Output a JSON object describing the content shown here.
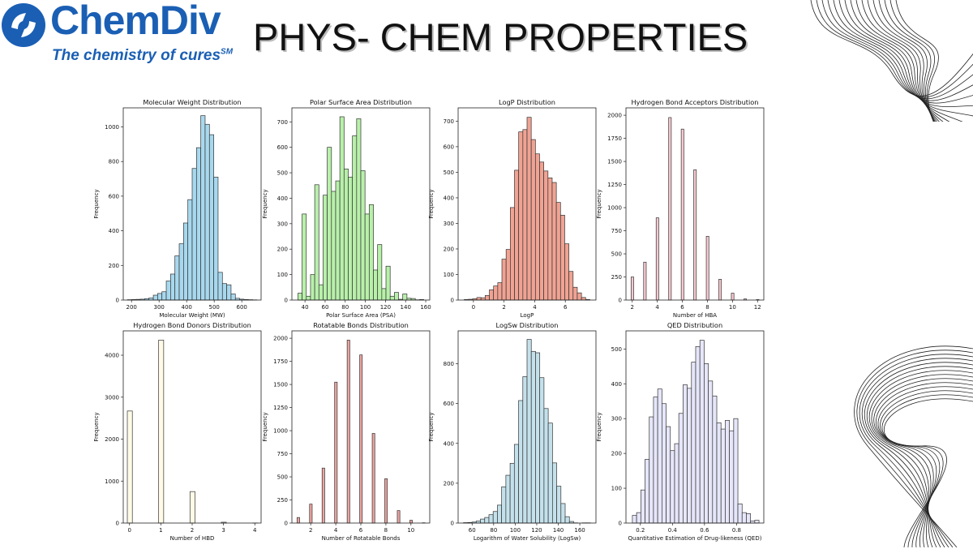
{
  "header": {
    "logo_name": "ChemDiv",
    "logo_tagline": "The chemistry of cures",
    "logo_tagline_mark": "SM",
    "title": "PHYS- CHEM PROPERTIES",
    "brand_color": "#1a5fb4"
  },
  "chart_data": [
    {
      "type": "bar",
      "id": "mw",
      "title": "Molecular Weight Distribution",
      "xlabel": "Molecular Weight (MW)",
      "ylabel": "Frequency",
      "color": "#a8d8ee",
      "bin_range": [
        185,
        655
      ],
      "xlim": [
        170,
        670
      ],
      "xticks": [
        200,
        300,
        400,
        500,
        600
      ],
      "ylim": [
        0,
        1110
      ],
      "yticks": [
        0,
        200,
        400,
        600,
        800,
        1000
      ],
      "values": [
        2,
        3,
        4,
        5,
        8,
        12,
        28,
        38,
        48,
        110,
        150,
        255,
        325,
        445,
        580,
        760,
        880,
        1065,
        1015,
        955,
        710,
        160,
        95,
        88,
        35,
        10,
        5,
        3,
        2,
        1
      ]
    },
    {
      "type": "bar",
      "id": "psa",
      "title": "Polar Surface Area Distribution",
      "xlabel": "Polar Surface Area (PSA)",
      "ylabel": "Frequency",
      "color": "#b8f0aa",
      "bin_range": [
        33,
        158
      ],
      "xlim": [
        27,
        164
      ],
      "xticks": [
        40,
        60,
        80,
        100,
        120,
        140,
        160
      ],
      "ylim": [
        0,
        755
      ],
      "yticks": [
        0,
        100,
        200,
        300,
        400,
        500,
        600,
        700
      ],
      "values": [
        27,
        338,
        15,
        100,
        453,
        60,
        412,
        600,
        427,
        468,
        720,
        515,
        483,
        645,
        712,
        508,
        338,
        375,
        118,
        218,
        45,
        133,
        15,
        30,
        3,
        24,
        7,
        6,
        1,
        2
      ]
    },
    {
      "type": "bar",
      "id": "logp",
      "title": "LogP Distribution",
      "xlabel": "LogP",
      "ylabel": "Frequency",
      "color": "#f0a393",
      "bin_range": [
        -0.6,
        7.6
      ],
      "xlim": [
        -1,
        8
      ],
      "xticks": [
        0,
        2,
        4,
        6
      ],
      "ylim": [
        0,
        752
      ],
      "yticks": [
        0,
        100,
        200,
        300,
        400,
        500,
        600,
        700
      ],
      "values": [
        2,
        3,
        5,
        10,
        9,
        18,
        40,
        55,
        68,
        160,
        198,
        362,
        508,
        658,
        667,
        715,
        628,
        572,
        540,
        505,
        478,
        460,
        382,
        332,
        220,
        112,
        50,
        28,
        10,
        2
      ]
    },
    {
      "type": "bar",
      "id": "hba",
      "title": "Hydrogen Bond Acceptors Distribution",
      "xlabel": "Number of HBA",
      "ylabel": "Frequency",
      "color": "#f8c8d0",
      "categories": [
        2,
        3,
        4,
        5,
        6,
        7,
        8,
        9,
        10,
        11,
        12
      ],
      "xlim": [
        1.5,
        12.5
      ],
      "xticks": [
        2,
        4,
        6,
        8,
        10,
        12
      ],
      "ylim": [
        0,
        2080
      ],
      "yticks": [
        0,
        250,
        500,
        750,
        1000,
        1250,
        1500,
        1750,
        2000
      ],
      "values": [
        250,
        410,
        890,
        1975,
        1850,
        1410,
        690,
        225,
        75,
        12,
        5
      ]
    },
    {
      "type": "bar",
      "id": "hbd",
      "title": "Hydrogen Bond Donors Distribution",
      "xlabel": "Number of HBD",
      "ylabel": "Frequency",
      "color": "#fffbe6",
      "categories": [
        0,
        1,
        2,
        3,
        4
      ],
      "xlim": [
        -0.2,
        4.2
      ],
      "xticks": [
        0,
        1,
        2,
        3,
        4
      ],
      "ylim": [
        0,
        4580
      ],
      "yticks": [
        0,
        1000,
        2000,
        3000,
        4000
      ],
      "values": [
        2670,
        4360,
        750,
        20,
        2
      ]
    },
    {
      "type": "bar",
      "id": "rotb",
      "title": "Rotatable Bonds Distribution",
      "xlabel": "Number of Rotatable Bonds",
      "ylabel": "Frequency",
      "color": "#eba3a0",
      "categories": [
        1,
        2,
        3,
        4,
        5,
        6,
        7,
        8,
        9,
        10,
        11
      ],
      "xlim": [
        0.5,
        11.5
      ],
      "xticks": [
        2,
        4,
        6,
        8,
        10
      ],
      "ylim": [
        0,
        2080
      ],
      "yticks": [
        0,
        250,
        500,
        750,
        1000,
        1250,
        1500,
        1750,
        2000
      ],
      "values": [
        60,
        205,
        595,
        1525,
        1980,
        1820,
        970,
        480,
        135,
        30,
        3
      ]
    },
    {
      "type": "bar",
      "id": "logsw",
      "title": "LogSw Distribution",
      "xlabel": "Logarithm of Water Solubility (LogSw)",
      "ylabel": "Frequency",
      "color": "#c4e1eb",
      "bin_range": [
        52,
        170
      ],
      "xlim": [
        47,
        175
      ],
      "xticks": [
        60,
        80,
        100,
        120,
        140,
        160
      ],
      "ylim": [
        0,
        965
      ],
      "yticks": [
        0,
        200,
        400,
        600,
        800
      ],
      "values": [
        2,
        3,
        5,
        10,
        20,
        28,
        42,
        58,
        90,
        182,
        240,
        300,
        395,
        615,
        735,
        922,
        862,
        855,
        730,
        575,
        502,
        302,
        185,
        98,
        32,
        8,
        1,
        0,
        1,
        1
      ]
    },
    {
      "type": "bar",
      "id": "qed",
      "title": "QED Distribution",
      "xlabel": "Quantitative Estimation of Drug-likeness (QED)",
      "ylabel": "Frequency",
      "color": "#e6e6fa",
      "bin_range": [
        0.15,
        0.94
      ],
      "xlim": [
        0.11,
        0.97
      ],
      "xticks": [
        0.2,
        0.4,
        0.6,
        0.8
      ],
      "ylim": [
        0,
        552
      ],
      "yticks": [
        0,
        100,
        200,
        300,
        400,
        500
      ],
      "values": [
        22,
        30,
        95,
        183,
        305,
        362,
        385,
        343,
        277,
        208,
        228,
        315,
        397,
        387,
        462,
        507,
        525,
        458,
        408,
        365,
        288,
        270,
        295,
        265,
        300,
        55,
        30,
        27,
        6,
        8
      ]
    }
  ]
}
